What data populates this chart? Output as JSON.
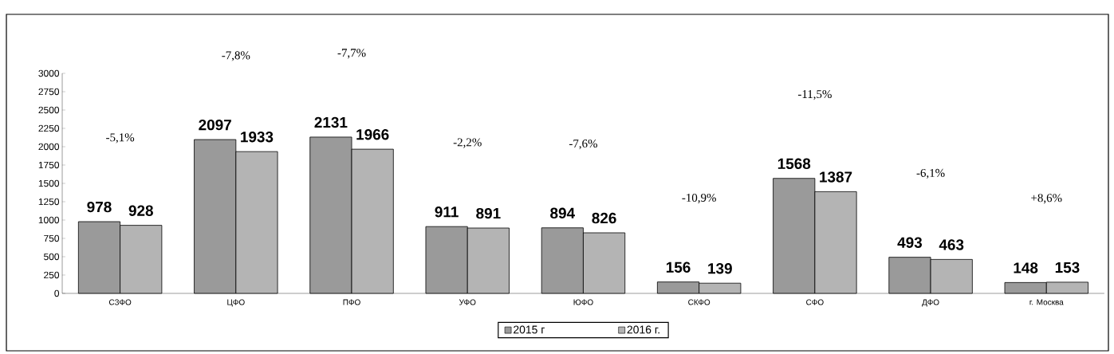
{
  "chart_data": {
    "type": "bar",
    "categories": [
      "СЗФО",
      "ЦФО",
      "ПФО",
      "УФО",
      "ЮФО",
      "СКФО",
      "СФО",
      "ДФО",
      "г. Москва"
    ],
    "series": [
      {
        "name": "2015 г",
        "color": "#9a9a9a",
        "values": [
          978,
          2097,
          2131,
          911,
          894,
          156,
          1568,
          493,
          148
        ]
      },
      {
        "name": "2016 г.",
        "color": "#b4b4b4",
        "values": [
          928,
          1933,
          1966,
          891,
          826,
          139,
          1387,
          463,
          153
        ]
      }
    ],
    "ylim": [
      0,
      3000
    ],
    "yticks": [
      0,
      250,
      500,
      750,
      1000,
      1250,
      1500,
      1750,
      2000,
      2250,
      2500,
      2750,
      3000
    ],
    "data_labels": true,
    "legend": "bottom",
    "grid": false,
    "annotations": [
      "-5,1%",
      "-7,8%",
      "-7,7%",
      "-2,2%",
      "-7,6%",
      "-10,9%",
      "-11,5%",
      "-6,1%",
      "+8,6%"
    ]
  }
}
